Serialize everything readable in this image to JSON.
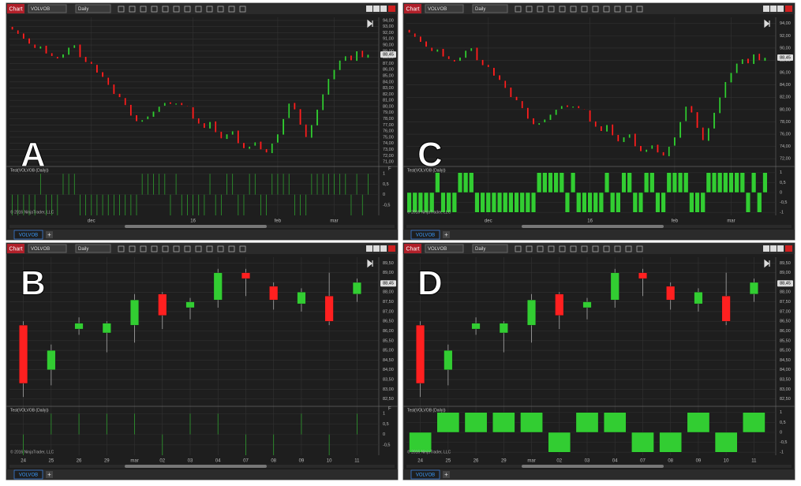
{
  "toolbar": {
    "app": "Chart",
    "instrument": "VOLVOB",
    "interval": "Daily"
  },
  "tab": "VOLVOB",
  "add_tab": "+",
  "indicator_title": "Test(VOLVOB (Daily))",
  "copyright": "© 2016 NinjaTrader, LLC",
  "charts": [
    {
      "type": "candlestick",
      "up_color": "#32cd32",
      "down_color": "#ff2020",
      "categories": [
        null,
        null,
        null,
        null,
        null,
        null,
        null,
        null,
        null,
        null,
        null,
        null,
        null,
        null,
        "dec",
        null,
        null,
        null,
        null,
        null,
        null,
        null,
        null,
        null,
        null,
        null,
        null,
        null,
        null,
        null,
        null,
        null,
        "16",
        null,
        null,
        null,
        null,
        null,
        null,
        null,
        null,
        null,
        null,
        null,
        null,
        null,
        null,
        "feb",
        null,
        null,
        null,
        null,
        null,
        null,
        null,
        null,
        null,
        "mar",
        null,
        null,
        null,
        null,
        null,
        null
      ],
      "open": [
        93.0,
        92.4,
        91.9,
        91.1,
        90.1,
        89.4,
        89.9,
        88.7,
        88.1,
        87.9,
        88.4,
        89.5,
        90.1,
        88.1,
        87.3,
        86.8,
        85.6,
        84.7,
        83.6,
        82.1,
        81.4,
        80.3,
        78.6,
        77.5,
        77.9,
        78.3,
        79.1,
        80.1,
        80.7,
        80.3,
        80.6,
        80.1,
        79.9,
        78.1,
        77.3,
        76.4,
        77.6,
        75.9,
        74.7,
        75.4,
        76.1,
        74.1,
        73.1,
        73.6,
        74.3,
        73.1,
        72.4,
        74.1,
        75.4,
        78.1,
        80.6,
        79.6,
        77.1,
        74.9,
        76.9,
        79.4,
        81.9,
        84.4,
        85.9,
        87.4,
        88.3,
        87.4,
        89.1,
        87.9
      ],
      "close": [
        92.5,
        91.8,
        91.0,
        90.2,
        89.5,
        89.8,
        88.6,
        88.2,
        87.8,
        88.5,
        89.6,
        90.0,
        88.0,
        87.2,
        86.9,
        85.5,
        84.8,
        83.5,
        82.0,
        81.5,
        80.2,
        78.5,
        77.6,
        77.8,
        78.4,
        79.2,
        80.0,
        80.6,
        80.4,
        80.5,
        80.2,
        80.0,
        78.0,
        77.2,
        76.5,
        77.5,
        75.8,
        74.8,
        75.5,
        76.0,
        74.0,
        73.2,
        73.5,
        74.2,
        73.0,
        72.5,
        74.0,
        75.5,
        78.0,
        80.5,
        79.5,
        77.0,
        75.0,
        77.0,
        79.5,
        82.0,
        84.5,
        86.0,
        87.5,
        88.2,
        87.5,
        89.0,
        88.0,
        88.45
      ],
      "signal": [
        -1,
        -1,
        -1,
        -1,
        -1,
        1,
        -1,
        -1,
        -1,
        1,
        1,
        1,
        -1,
        -1,
        -1,
        -1,
        -1,
        -1,
        -1,
        -1,
        -1,
        -1,
        -1,
        1,
        1,
        1,
        1,
        1,
        -1,
        1,
        -1,
        -1,
        -1,
        -1,
        -1,
        1,
        -1,
        -1,
        1,
        1,
        -1,
        -1,
        1,
        1,
        -1,
        -1,
        1,
        1,
        1,
        1,
        -1,
        -1,
        -1,
        1,
        1,
        1,
        1,
        1,
        1,
        1,
        -1,
        1,
        -1,
        1
      ],
      "last": {
        "value": 88.45,
        "label": "88,45"
      },
      "panels": [
        {
          "label": "A",
          "label_corner": "bottom-left",
          "indicator_style": "line",
          "badge": "F",
          "ylim": [
            70.5,
            94.5
          ],
          "yticks": [
            {
              "value": 71,
              "label": "71,00"
            },
            {
              "value": 72,
              "label": "72,00"
            },
            {
              "value": 73,
              "label": "73,00"
            },
            {
              "value": 74,
              "label": "74,00"
            },
            {
              "value": 75,
              "label": "75,00"
            },
            {
              "value": 76,
              "label": "76,00"
            },
            {
              "value": 77,
              "label": "77,00"
            },
            {
              "value": 78,
              "label": "78,00"
            },
            {
              "value": 79,
              "label": "79,00"
            },
            {
              "value": 80,
              "label": "80,00"
            },
            {
              "value": 81,
              "label": "81,00"
            },
            {
              "value": 82,
              "label": "82,00"
            },
            {
              "value": 83,
              "label": "83,00"
            },
            {
              "value": 84,
              "label": "84,00"
            },
            {
              "value": 85,
              "label": "85,00"
            },
            {
              "value": 86,
              "label": "86,00"
            },
            {
              "value": 87,
              "label": "87,00"
            },
            {
              "value": 88,
              "label": "88,00"
            },
            {
              "value": 89,
              "label": "89,00"
            },
            {
              "value": 90,
              "label": "90,00"
            },
            {
              "value": 91,
              "label": "91,00"
            },
            {
              "value": 92,
              "label": "92,00"
            },
            {
              "value": 93,
              "label": "93,00"
            },
            {
              "value": 94,
              "label": "94,00"
            }
          ],
          "indicator_ylim": [
            -1,
            1.2
          ],
          "indicator_yticks": [
            1,
            {
              "value": 0.5,
              "label": "0,5"
            },
            0,
            {
              "value": -0.5,
              "label": "-0,5"
            }
          ]
        },
        {
          "label": "C",
          "label_corner": "bottom-left",
          "indicator_style": "bar",
          "ylim": [
            71,
            95
          ],
          "yticks": [
            {
              "value": 72,
              "label": "72,00"
            },
            {
              "value": 74,
              "label": "74,00"
            },
            {
              "value": 76,
              "label": "76,00"
            },
            {
              "value": 78,
              "label": "78,00"
            },
            {
              "value": 80,
              "label": "80,00"
            },
            {
              "value": 82,
              "label": "82,00"
            },
            {
              "value": 84,
              "label": "84,00"
            },
            {
              "value": 86,
              "label": "86,00"
            },
            {
              "value": 88,
              "label": "88,00"
            },
            {
              "value": 90,
              "label": "90,00"
            },
            {
              "value": 92,
              "label": "92,00"
            },
            {
              "value": 94,
              "label": "94,00"
            }
          ],
          "indicator_ylim": [
            -1.15,
            1.15
          ],
          "indicator_yticks": [
            1,
            {
              "value": 0.5,
              "label": "0,5"
            },
            0,
            {
              "value": -0.5,
              "label": "-0,5"
            },
            -1
          ]
        }
      ]
    },
    {
      "type": "candlestick",
      "up_color": "#32cd32",
      "down_color": "#ff2020",
      "categories": [
        "24",
        "25",
        "26",
        "29",
        "mar",
        "02",
        "03",
        "04",
        "07",
        "08",
        "09",
        "10",
        "11"
      ],
      "open": [
        86.3,
        84.0,
        86.1,
        85.9,
        86.3,
        87.9,
        87.2,
        87.6,
        89.0,
        88.3,
        87.4,
        87.8,
        87.9
      ],
      "high": [
        86.5,
        85.3,
        86.7,
        86.5,
        87.9,
        88.0,
        87.7,
        89.2,
        89.2,
        88.5,
        88.2,
        89.0,
        88.7
      ],
      "low": [
        82.6,
        83.2,
        85.8,
        84.9,
        85.4,
        86.1,
        86.6,
        87.2,
        87.8,
        87.1,
        87.0,
        86.3,
        87.5
      ],
      "close": [
        83.3,
        85.0,
        86.4,
        86.4,
        87.6,
        86.8,
        87.5,
        89.0,
        88.7,
        87.6,
        88.0,
        86.5,
        88.5
      ],
      "signal": [
        -1,
        1,
        1,
        1,
        1,
        -1,
        1,
        1,
        -1,
        -1,
        1,
        -1,
        1
      ],
      "last": {
        "value": 88.45,
        "label": "88,45"
      },
      "panels": [
        {
          "label": "B",
          "label_corner": "top-left",
          "indicator_style": "line",
          "badge": "F",
          "ylim": [
            82.2,
            89.8
          ],
          "yticks": [
            {
              "value": 82.5,
              "label": "82,50"
            },
            {
              "value": 83,
              "label": "83,00"
            },
            {
              "value": 83.5,
              "label": "83,50"
            },
            {
              "value": 84,
              "label": "84,00"
            },
            {
              "value": 84.5,
              "label": "84,50"
            },
            {
              "value": 85,
              "label": "85,00"
            },
            {
              "value": 85.5,
              "label": "85,50"
            },
            {
              "value": 86,
              "label": "86,00"
            },
            {
              "value": 86.5,
              "label": "86,50"
            },
            {
              "value": 87,
              "label": "87,00"
            },
            {
              "value": 87.5,
              "label": "87,50"
            },
            {
              "value": 88,
              "label": "88,00"
            },
            {
              "value": 88.5,
              "label": "88,50"
            },
            {
              "value": 89,
              "label": "89,00"
            },
            {
              "value": 89.5,
              "label": "89,50"
            }
          ],
          "indicator_ylim": [
            -1,
            1.2
          ],
          "indicator_yticks": [
            1,
            {
              "value": 0.5,
              "label": "0,5"
            },
            0,
            {
              "value": -0.5,
              "label": "-0,5"
            }
          ]
        },
        {
          "label": "D",
          "label_corner": "top-left",
          "indicator_style": "bar",
          "ylim": [
            82.2,
            89.8
          ],
          "yticks": [
            {
              "value": 82.5,
              "label": "82,50"
            },
            {
              "value": 83,
              "label": "83,00"
            },
            {
              "value": 83.5,
              "label": "83,50"
            },
            {
              "value": 84,
              "label": "84,00"
            },
            {
              "value": 84.5,
              "label": "84,50"
            },
            {
              "value": 85,
              "label": "85,00"
            },
            {
              "value": 85.5,
              "label": "85,50"
            },
            {
              "value": 86,
              "label": "86,00"
            },
            {
              "value": 86.5,
              "label": "86,50"
            },
            {
              "value": 87,
              "label": "87,00"
            },
            {
              "value": 87.5,
              "label": "87,50"
            },
            {
              "value": 88,
              "label": "88,00"
            },
            {
              "value": 88.5,
              "label": "88,50"
            },
            {
              "value": 89,
              "label": "89,00"
            },
            {
              "value": 89.5,
              "label": "89,50"
            }
          ],
          "indicator_ylim": [
            -1.15,
            1.15
          ],
          "indicator_yticks": [
            1,
            {
              "value": 0.5,
              "label": "0,5"
            },
            0,
            {
              "value": -0.5,
              "label": "-0,5"
            },
            -1
          ]
        }
      ]
    }
  ]
}
